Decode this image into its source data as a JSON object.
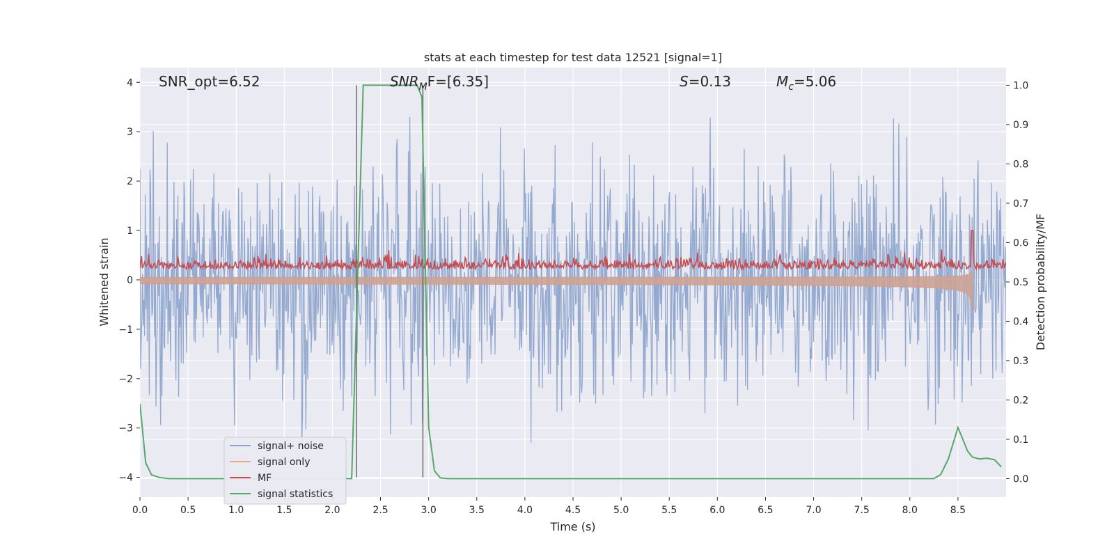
{
  "chart_data": {
    "type": "line",
    "title": "stats at each timestep for test data 12521 [signal=1]",
    "xlabel": "Time (s)",
    "ylabel": "Whitened strain",
    "ylabel_right": "Detection probability/MF",
    "xlim": [
      0.0,
      9.0
    ],
    "ylim": [
      -4.4,
      4.3
    ],
    "ylim_right": [
      -0.047,
      1.045
    ],
    "xticks": [
      0.0,
      0.5,
      1.0,
      1.5,
      2.0,
      2.5,
      3.0,
      3.5,
      4.0,
      4.5,
      5.0,
      5.5,
      6.0,
      6.5,
      7.0,
      7.5,
      8.0,
      8.5
    ],
    "xtick_labels": [
      "0.0",
      "0.5",
      "1.0",
      "1.5",
      "2.0",
      "2.5",
      "3.0",
      "3.5",
      "4.0",
      "4.5",
      "5.0",
      "5.5",
      "6.0",
      "6.5",
      "7.0",
      "7.5",
      "8.0",
      "8.5"
    ],
    "yticks": [
      4,
      3,
      2,
      1,
      0,
      -1,
      -2,
      -3,
      -4
    ],
    "ytick_labels": [
      "4",
      "3",
      "2",
      "1",
      "0",
      "−1",
      "−2",
      "−3",
      "−4"
    ],
    "yticks_right": [
      1.0,
      0.9,
      0.8,
      0.7,
      0.6,
      0.5,
      0.4,
      0.3,
      0.2,
      0.1,
      0.0
    ],
    "ytick_labels_right": [
      "1.0",
      "0.9",
      "0.8",
      "0.7",
      "0.6",
      "0.5",
      "0.4",
      "0.3",
      "0.2",
      "0.1",
      "0.0"
    ],
    "annotations": {
      "snr_opt": "SNR_opt=6.52",
      "snr_mf_base": "SNR",
      "snr_mf_sub": "M",
      "snr_mf_rest": "F=[6.35]",
      "s_var": "S",
      "s_rest": "=0.13",
      "mc_base": "M",
      "mc_sub": "c",
      "mc_rest": "=5.06"
    },
    "vlines": [
      2.25,
      2.94
    ],
    "series": [
      {
        "name": "signal+ noise",
        "color": "#8fa5cc",
        "kind": "noise",
        "amplitude_envelope": [
          -3.3,
          3.3
        ],
        "rms": 1.0
      },
      {
        "name": "signal only",
        "color": "#dd8452",
        "kind": "chirp",
        "t_end": 8.65,
        "peak_low": -0.65,
        "peak_high": 0.2
      },
      {
        "name": "MF",
        "color": "#c44e52",
        "kind": "mf",
        "baseline": 0.25,
        "spike_t": 8.65,
        "spike_y": 1.0
      },
      {
        "name": "signal statistics",
        "color": "#55a868",
        "kind": "prob",
        "axis": "right",
        "x": [
          0.0,
          0.06,
          0.12,
          0.2,
          0.3,
          0.5,
          1.0,
          1.5,
          2.0,
          2.2,
          2.26,
          2.32,
          2.5,
          2.8,
          2.88,
          2.93,
          3.0,
          3.06,
          3.12,
          3.2,
          3.5,
          4.0,
          5.0,
          6.0,
          7.0,
          8.0,
          8.25,
          8.32,
          8.4,
          8.5,
          8.55,
          8.6,
          8.65,
          8.72,
          8.8,
          8.88,
          8.95
        ],
        "values": [
          0.19,
          0.04,
          0.01,
          0.003,
          0.0,
          0.0,
          0.0,
          0.0,
          0.0,
          0.0,
          0.5,
          1.0,
          1.0,
          1.0,
          1.0,
          0.97,
          0.13,
          0.02,
          0.002,
          0.0,
          0.0,
          0.0,
          0.0,
          0.0,
          0.0,
          0.0,
          0.0,
          0.01,
          0.05,
          0.13,
          0.1,
          0.07,
          0.055,
          0.05,
          0.052,
          0.048,
          0.03
        ]
      }
    ],
    "legend": {
      "position": "lower-left",
      "entries": [
        "signal+ noise",
        "signal only",
        "MF",
        "signal statistics"
      ]
    },
    "grid": true
  }
}
